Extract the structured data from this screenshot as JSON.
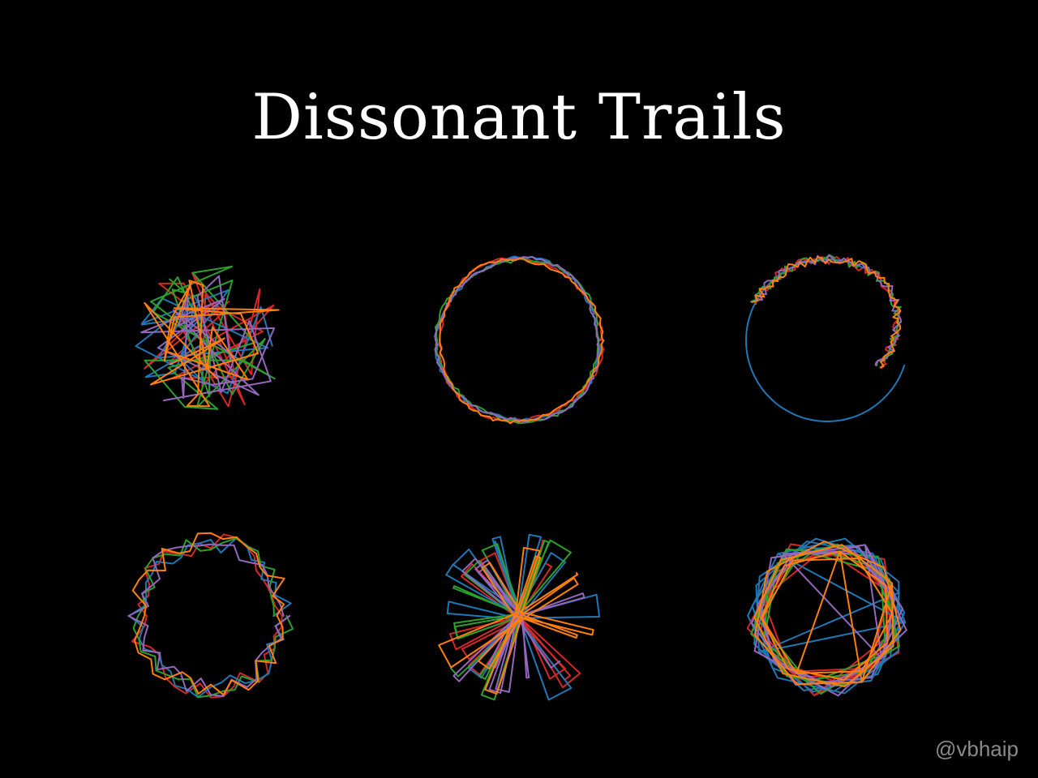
{
  "title": "Dissonant Trails",
  "watermark": "@vbhaip",
  "palette": [
    "#d62728",
    "#1f77b4",
    "#2ca02c",
    "#9467bd",
    "#ff7f0e"
  ],
  "panels": [
    {
      "name": "panel-chaotic-scribble",
      "style": "scribble"
    },
    {
      "name": "panel-tight-ring",
      "style": "ring"
    },
    {
      "name": "panel-partial-arc",
      "style": "arc"
    },
    {
      "name": "panel-jagged-ring",
      "style": "jagged"
    },
    {
      "name": "panel-radial-burst",
      "style": "burst"
    },
    {
      "name": "panel-polygon-rosette",
      "style": "rosette"
    }
  ]
}
